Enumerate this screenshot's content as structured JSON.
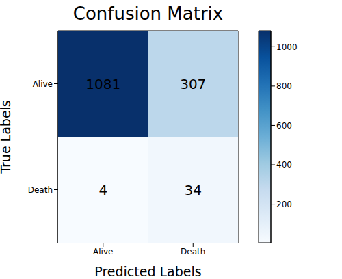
{
  "chart_data": {
    "type": "heatmap",
    "title": "Confusion Matrix",
    "x_label": "Predicted Labels",
    "y_label": "True Labels",
    "x": [
      "Alive",
      "Death"
    ],
    "y": [
      "Alive",
      "Death"
    ],
    "values": [
      [
        1081,
        307
      ],
      [
        4,
        34
      ]
    ],
    "color": "Blues",
    "data_labels": true,
    "colorbar": {
      "range": [
        4,
        1081
      ],
      "ticks": [
        200,
        400,
        600,
        800,
        1000
      ]
    }
  }
}
